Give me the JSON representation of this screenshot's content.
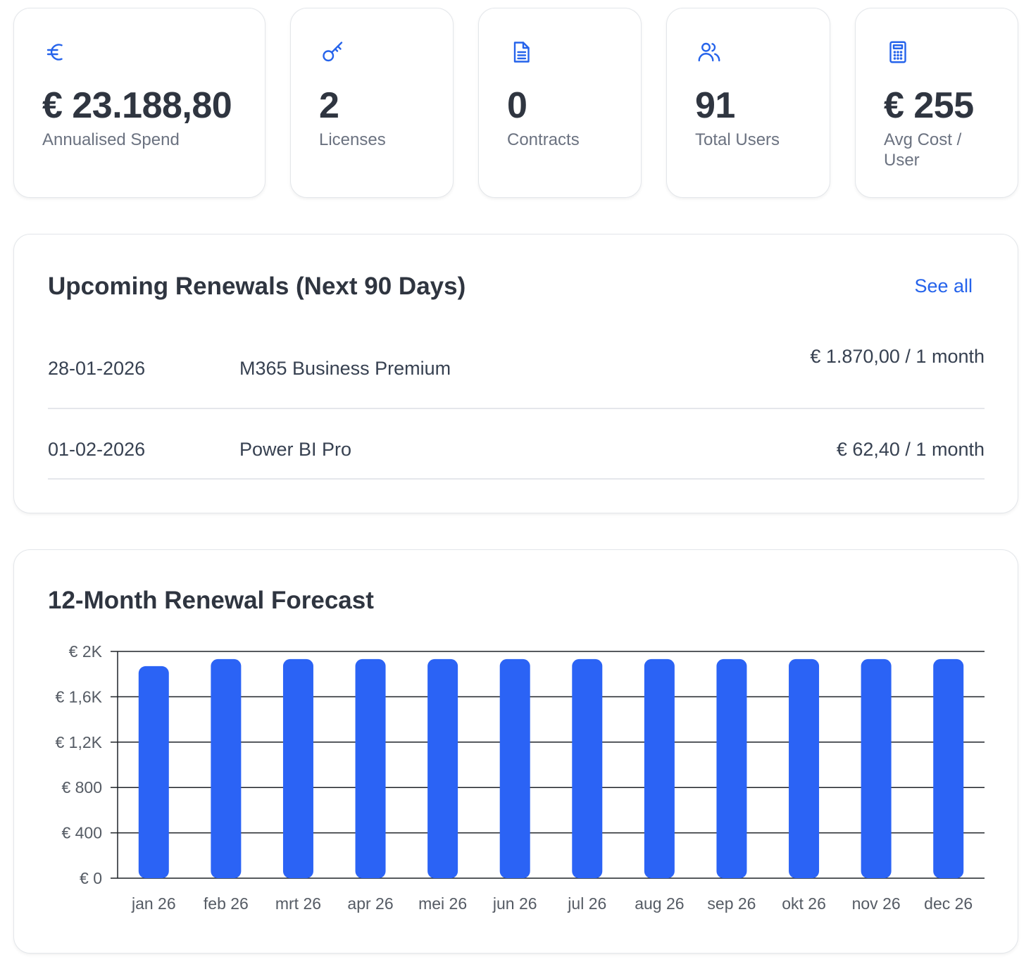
{
  "stats": [
    {
      "icon": "euro-icon",
      "value": "€ 23.188,80",
      "label": "Annualised Spend"
    },
    {
      "icon": "key-icon",
      "value": "2",
      "label": "Licenses"
    },
    {
      "icon": "document-icon",
      "value": "0",
      "label": "Contracts"
    },
    {
      "icon": "users-icon",
      "value": "91",
      "label": "Total Users"
    },
    {
      "icon": "calculator-icon",
      "value": "€ 255",
      "label": "Avg Cost / User"
    }
  ],
  "renewals": {
    "title": "Upcoming Renewals (Next 90 Days)",
    "see_all": "See all",
    "rows": [
      {
        "date": "28-01-2026",
        "name": "M365 Business Premium",
        "price": "€ 1.870,00 / 1 month"
      },
      {
        "date": "01-02-2026",
        "name": "Power BI Pro",
        "price": "€ 62,40 / 1 month"
      }
    ]
  },
  "forecast": {
    "title": "12-Month Renewal Forecast"
  },
  "colors": {
    "accent": "#2563eb",
    "bar": "#2b63f5"
  },
  "chart_data": {
    "type": "bar",
    "title": "12-Month Renewal Forecast",
    "categories": [
      "jan 26",
      "feb 26",
      "mrt 26",
      "apr 26",
      "mei 26",
      "jun 26",
      "jul 26",
      "aug 26",
      "sep 26",
      "okt 26",
      "nov 26",
      "dec 26"
    ],
    "values": [
      1870,
      1932.4,
      1932.4,
      1932.4,
      1932.4,
      1932.4,
      1932.4,
      1932.4,
      1932.4,
      1932.4,
      1932.4,
      1932.4
    ],
    "yticks": [
      0,
      400,
      800,
      1200,
      1600,
      2000
    ],
    "ytick_labels": [
      "€ 0",
      "€ 400",
      "€ 800",
      "€ 1,2K",
      "€ 1,6K",
      "€ 2K"
    ],
    "ylim": [
      0,
      2000
    ],
    "grid": true,
    "legend": "none",
    "xlabel": "",
    "ylabel": ""
  }
}
